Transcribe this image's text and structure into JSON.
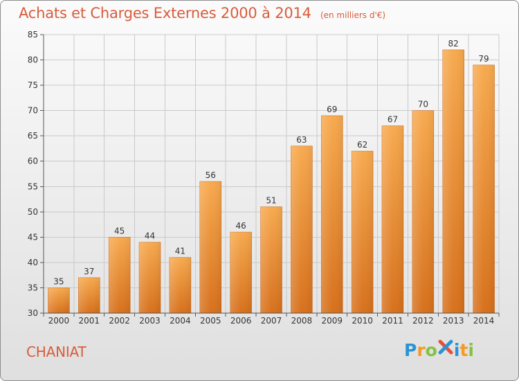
{
  "header": {
    "title": "Achats et Charges Externes 2000 à 2014",
    "unit": "(en milliers d'€)"
  },
  "footer": {
    "commune": "CHANIAT",
    "brand": {
      "p": "P",
      "r": "r",
      "o": "o",
      "x": "x",
      "i1": "i",
      "t": "t",
      "i2": "i"
    }
  },
  "colors": {
    "title": "#d95b3a",
    "bar_top": "#f7a94d",
    "bar_bottom": "#d66f1a",
    "grid": "#c9c9c9",
    "axis": "#555555",
    "brand_blue": "#2a93d5",
    "brand_orange": "#f39a27",
    "brand_green": "#85c142",
    "brand_red": "#e94d39"
  },
  "chart_data": {
    "type": "bar",
    "categories": [
      "2000",
      "2001",
      "2002",
      "2003",
      "2004",
      "2005",
      "2006",
      "2007",
      "2008",
      "2009",
      "2010",
      "2011",
      "2012",
      "2013",
      "2014"
    ],
    "values": [
      35,
      37,
      45,
      44,
      41,
      56,
      46,
      51,
      63,
      69,
      62,
      67,
      70,
      82,
      79
    ],
    "ylim": [
      30,
      85
    ],
    "yticks": [
      "30",
      "35",
      "40",
      "45",
      "50",
      "55",
      "60",
      "65",
      "70",
      "75",
      "80",
      "85"
    ],
    "grid": true
  }
}
